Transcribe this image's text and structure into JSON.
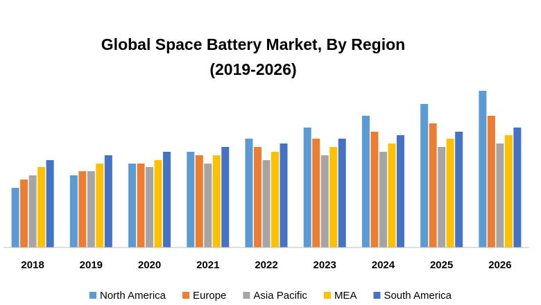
{
  "chart_data": {
    "type": "bar",
    "title": "Global Space Battery Market, By Region (2019-2026)",
    "categories": [
      "2018",
      "2019",
      "2020",
      "2021",
      "2022",
      "2023",
      "2024",
      "2025",
      "2026"
    ],
    "series": [
      {
        "name": "North America",
        "color": "#5b9bd5",
        "values": [
          86,
          104,
          121,
          138,
          157,
          173,
          190,
          207,
          226
        ]
      },
      {
        "name": "Europe",
        "color": "#ed7d31",
        "values": [
          98,
          110,
          121,
          133,
          145,
          157,
          167,
          179,
          190
        ]
      },
      {
        "name": "Asia Pacific",
        "color": "#a5a5a5",
        "values": [
          104,
          110,
          116,
          121,
          126,
          133,
          138,
          145,
          150
        ]
      },
      {
        "name": "MEA",
        "color": "#ffc000",
        "values": [
          116,
          121,
          126,
          133,
          138,
          145,
          150,
          157,
          162
        ]
      },
      {
        "name": "South America",
        "color": "#4472c4",
        "values": [
          126,
          133,
          138,
          145,
          150,
          157,
          162,
          167,
          173
        ]
      }
    ],
    "ylim": [
      0,
      240
    ],
    "legend": "bottom"
  }
}
